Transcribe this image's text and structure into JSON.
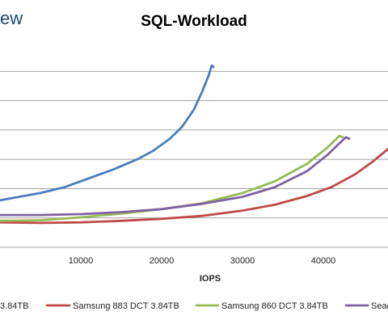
{
  "header": {
    "brand_fragment": "ew"
  },
  "chart_data": {
    "type": "line",
    "title": "SQL-Workload",
    "xlabel": "IOPS",
    "ylabel": "",
    "xlim": [
      0,
      48000
    ],
    "ylim": [
      0,
      7
    ],
    "x_ticks": [
      10000,
      20000,
      30000,
      40000
    ],
    "x_tick_labels": [
      "10000",
      "20000",
      "30000",
      "40000"
    ],
    "y_gridlines": [
      1,
      2,
      3,
      4,
      5,
      6
    ],
    "grid": true,
    "legend_position": "bottom",
    "series": [
      {
        "name": "",
        "legend_text": "3.84TB",
        "color": "#4a7ebb",
        "x": [
          0,
          2000,
          5000,
          8000,
          11000,
          14000,
          17000,
          19000,
          21000,
          22500,
          24000,
          25000,
          25800,
          26200,
          26400
        ],
        "y": [
          1.6,
          1.7,
          1.85,
          2.05,
          2.35,
          2.65,
          3.0,
          3.3,
          3.7,
          4.1,
          4.7,
          5.3,
          5.85,
          6.2,
          6.15
        ]
      },
      {
        "name": "Samsung 883 DCT 3.84TB",
        "legend_text": "Samsung 883 DCT 3.84TB",
        "color": "#be4b48",
        "x": [
          0,
          5000,
          10000,
          15000,
          20000,
          25000,
          30000,
          34000,
          38000,
          41000,
          44000,
          46000,
          48000
        ],
        "y": [
          0.85,
          0.83,
          0.85,
          0.9,
          0.97,
          1.07,
          1.25,
          1.45,
          1.75,
          2.05,
          2.5,
          2.9,
          3.35
        ]
      },
      {
        "name": "Samsung 860 DCT 3.84TB",
        "legend_text": "Samsung 860 DCT 3.84TB",
        "color": "#98b954",
        "x": [
          0,
          5000,
          10000,
          15000,
          20000,
          25000,
          30000,
          34000,
          38000,
          40500,
          42000,
          42400
        ],
        "y": [
          0.9,
          0.92,
          1.02,
          1.15,
          1.3,
          1.5,
          1.85,
          2.25,
          2.85,
          3.4,
          3.8,
          3.75
        ]
      },
      {
        "name": "",
        "legend_text": "Seag",
        "color": "#7e62a1",
        "x": [
          0,
          5000,
          10000,
          15000,
          20000,
          25000,
          30000,
          34000,
          38000,
          40500,
          42200,
          42800,
          43200
        ],
        "y": [
          1.1,
          1.1,
          1.13,
          1.2,
          1.3,
          1.48,
          1.72,
          2.05,
          2.6,
          3.15,
          3.6,
          3.75,
          3.7
        ]
      }
    ]
  }
}
